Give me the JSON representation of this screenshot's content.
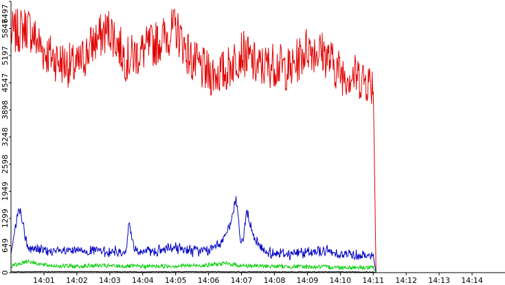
{
  "chart_data": {
    "type": "line",
    "title": "",
    "xlabel": "",
    "ylabel": "",
    "ylim": [
      0,
      6497
    ],
    "yticks": [
      0,
      649,
      1299,
      1949,
      2598,
      3248,
      3898,
      4547,
      5197,
      5847,
      6497
    ],
    "ytick_labels": [
      "0",
      "649",
      "1299",
      "1949",
      "2598",
      "3248",
      "3898",
      "4547",
      "5197",
      "5847",
      "6497"
    ],
    "xrange_minutes": [
      "14:00",
      "14:15"
    ],
    "xticks": [
      "14:01",
      "14:02",
      "14:03",
      "14:04",
      "14:05",
      "14:06",
      "14:07",
      "14:08",
      "14:09",
      "14:10",
      "14:11",
      "14:12",
      "14:13",
      "14:14"
    ],
    "grid": false,
    "legend": "none",
    "series": [
      {
        "color": "#e00000",
        "x": [
          "14:00:00",
          "14:00:30",
          "14:01:00",
          "14:01:30",
          "14:02:00",
          "14:02:30",
          "14:03:00",
          "14:03:30",
          "14:04:00",
          "14:04:30",
          "14:05:00",
          "14:05:30",
          "14:06:00",
          "14:06:30",
          "14:07:00",
          "14:07:30",
          "14:08:00",
          "14:08:30",
          "14:09:00",
          "14:09:30",
          "14:10:00",
          "14:10:30",
          "14:10:50",
          "14:11:00",
          "14:11:05"
        ],
        "values": [
          5700,
          5900,
          5300,
          5050,
          4900,
          5500,
          5850,
          5100,
          5300,
          5550,
          5850,
          5050,
          4750,
          4800,
          5300,
          4900,
          5000,
          4850,
          5400,
          5250,
          4800,
          4700,
          4600,
          4500,
          0
        ]
      },
      {
        "color": "#0000c0",
        "x": [
          "14:00:00",
          "14:00:15",
          "14:00:30",
          "14:01:00",
          "14:01:30",
          "14:02:00",
          "14:02:30",
          "14:03:00",
          "14:03:30",
          "14:03:35",
          "14:03:45",
          "14:04:00",
          "14:04:30",
          "14:05:00",
          "14:05:30",
          "14:06:00",
          "14:06:20",
          "14:06:40",
          "14:06:50",
          "14:07:00",
          "14:07:10",
          "14:07:20",
          "14:07:40",
          "14:08:00",
          "14:08:30",
          "14:09:00",
          "14:09:30",
          "14:10:00",
          "14:10:30",
          "14:11:00",
          "14:11:05"
        ],
        "values": [
          500,
          1600,
          600,
          520,
          500,
          520,
          530,
          500,
          500,
          1200,
          550,
          500,
          520,
          600,
          520,
          520,
          700,
          1100,
          1800,
          600,
          1500,
          900,
          500,
          480,
          450,
          500,
          520,
          450,
          420,
          400,
          0
        ]
      },
      {
        "color": "#00cc00",
        "x": [
          "14:00:00",
          "14:00:30",
          "14:01:00",
          "14:01:30",
          "14:02:00",
          "14:02:30",
          "14:03:00",
          "14:04:00",
          "14:05:00",
          "14:06:00",
          "14:06:30",
          "14:07:00",
          "14:08:00",
          "14:09:00",
          "14:10:00",
          "14:11:00",
          "14:11:05"
        ],
        "values": [
          150,
          280,
          180,
          160,
          150,
          170,
          160,
          150,
          160,
          180,
          220,
          170,
          150,
          140,
          130,
          120,
          0
        ]
      },
      {
        "color": "#000000",
        "x": [
          "14:00:00",
          "14:02:00",
          "14:04:00",
          "14:06:00",
          "14:08:00",
          "14:10:00",
          "14:11:00",
          "14:11:05",
          "14:15:00"
        ],
        "values": [
          20,
          25,
          20,
          22,
          18,
          20,
          15,
          0,
          0
        ]
      }
    ]
  }
}
